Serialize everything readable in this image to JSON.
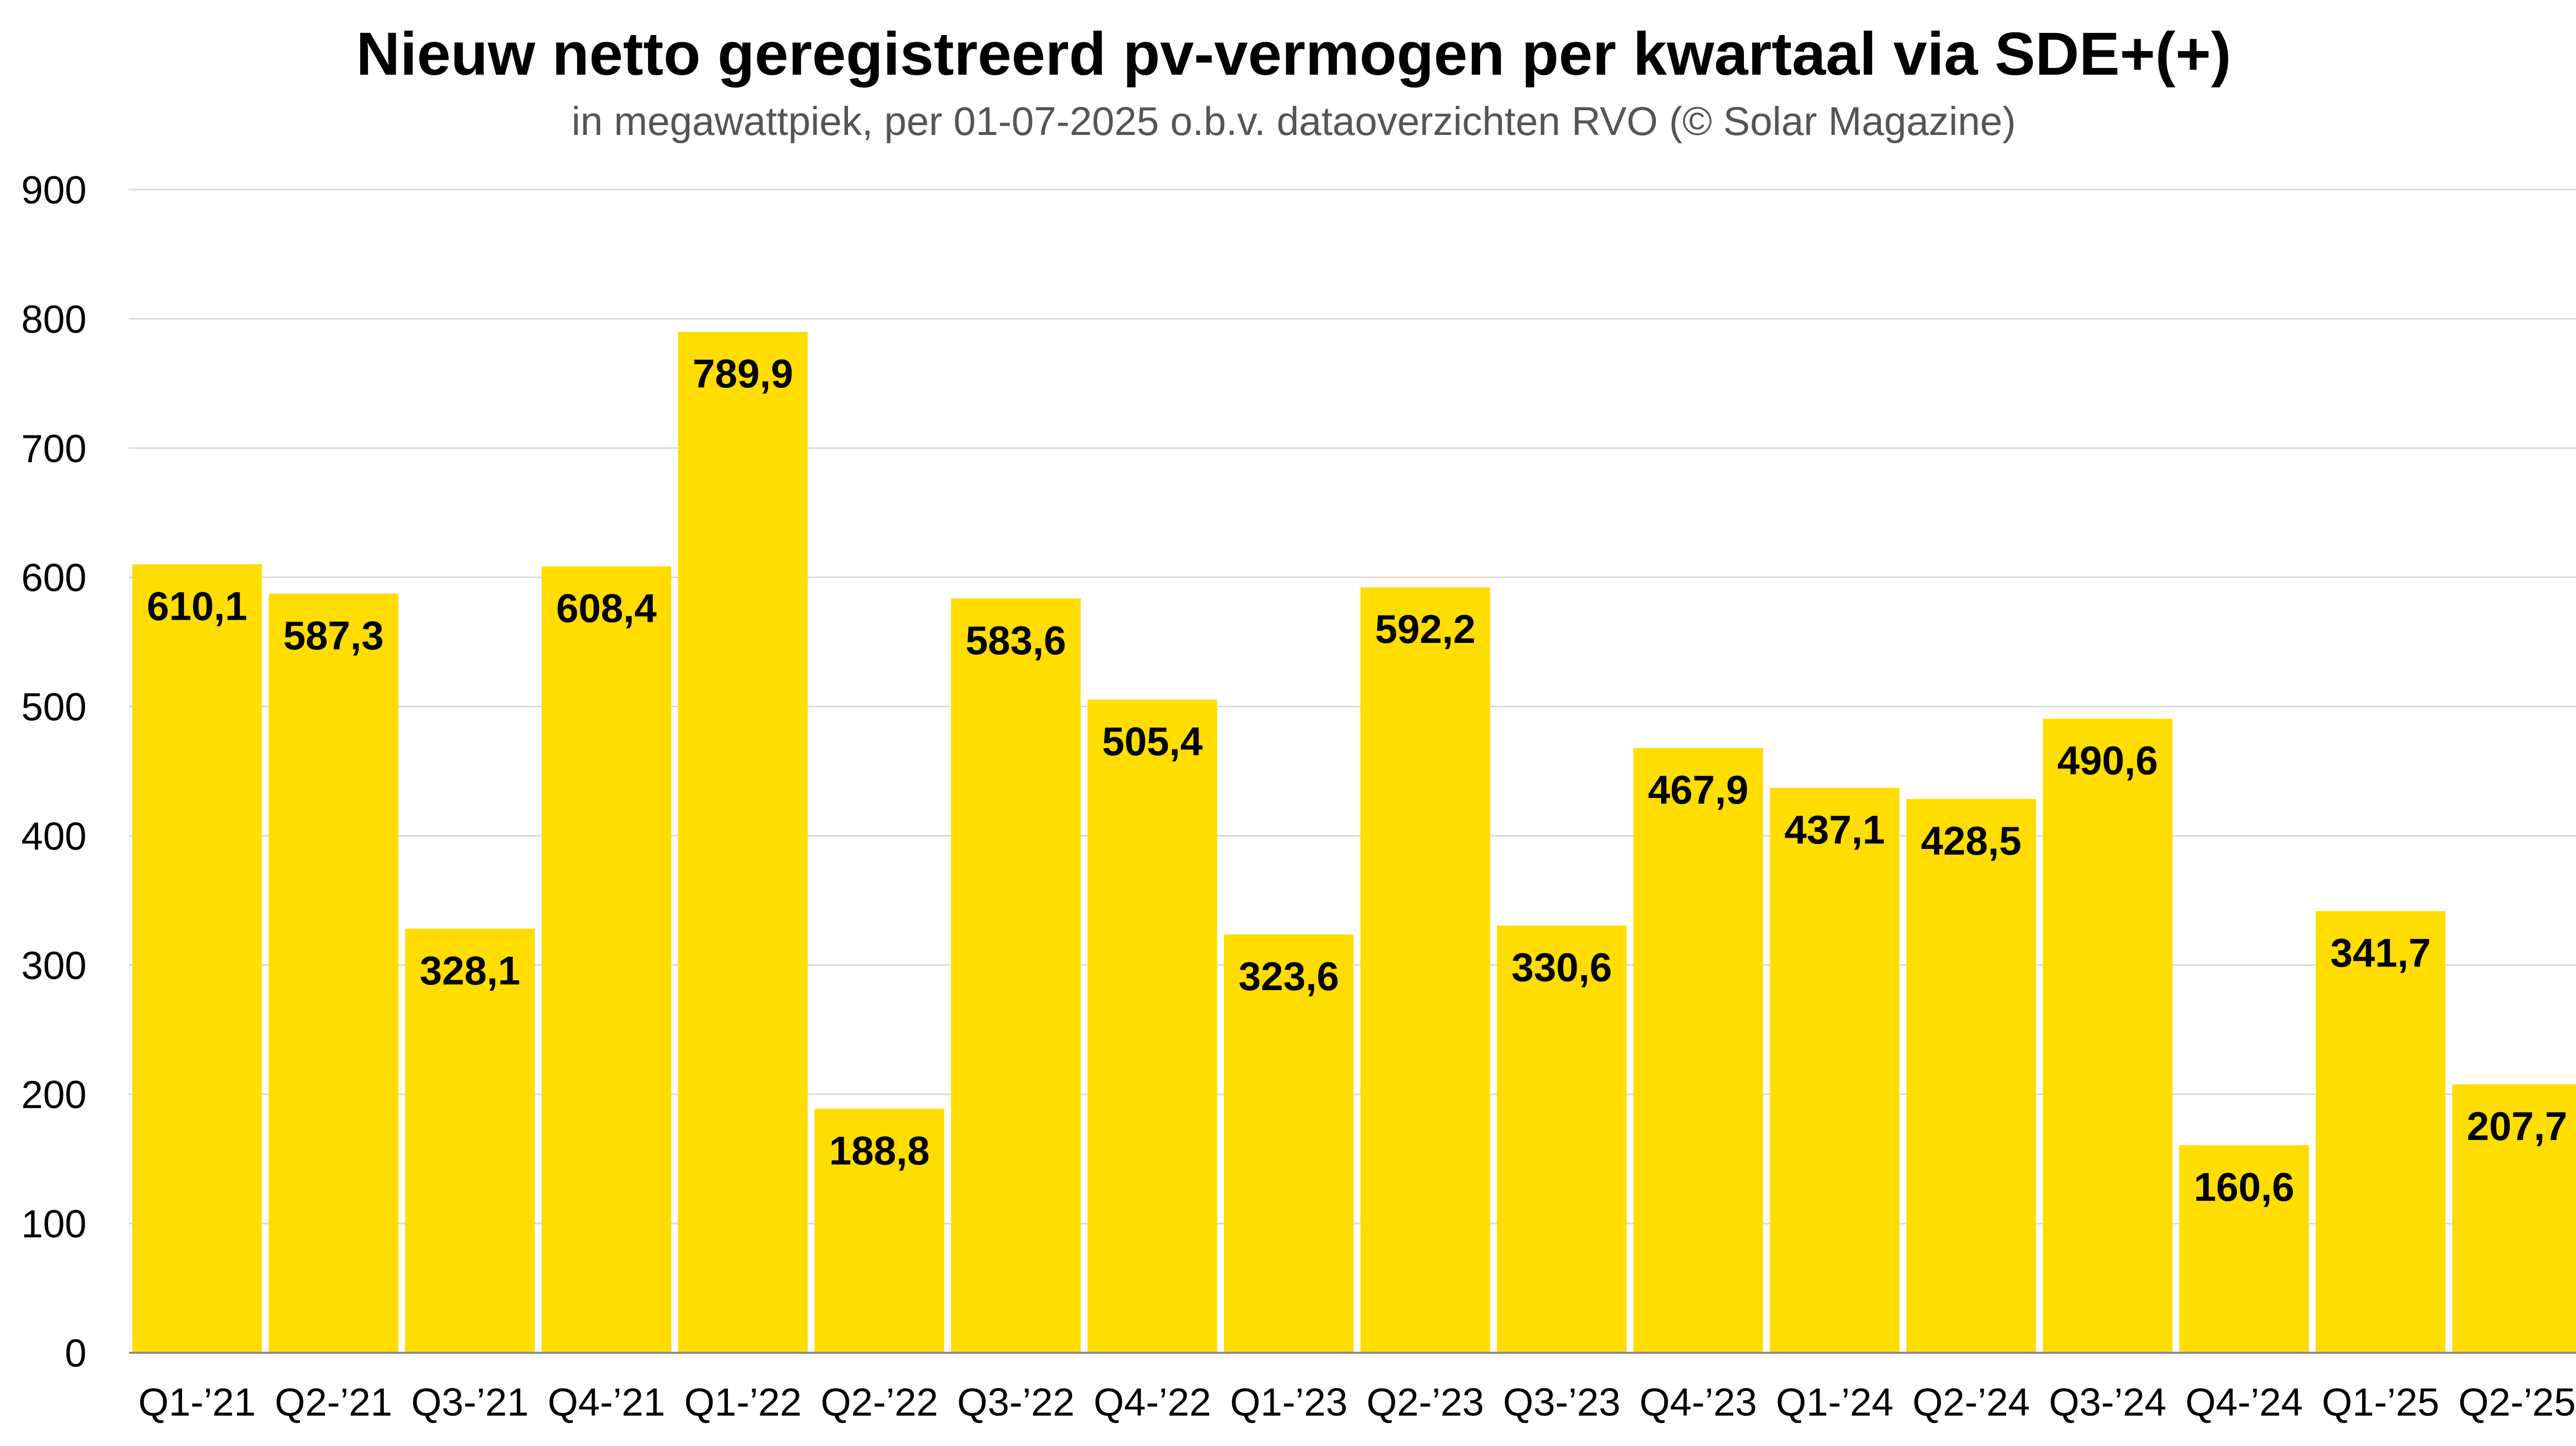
{
  "chart_data": {
    "type": "bar",
    "title": "Nieuw netto geregistreerd pv-vermogen per kwartaal via SDE+(+)",
    "subtitle": "in megawattpiek, per 01-07-2025 o.b.v. dataoverzichten RVO (© Solar Magazine)",
    "categories": [
      "Q1-’21",
      "Q2-’21",
      "Q3-’21",
      "Q4-’21",
      "Q1-’22",
      "Q2-’22",
      "Q3-’22",
      "Q4-’22",
      "Q1-’23",
      "Q2-’23",
      "Q3-’23",
      "Q4-’23",
      "Q1-’24",
      "Q2-’24",
      "Q3-’24",
      "Q4-’24",
      "Q1-’25",
      "Q2-’25"
    ],
    "values": [
      610.1,
      587.3,
      328.1,
      608.4,
      789.9,
      188.8,
      583.6,
      505.4,
      323.6,
      592.2,
      330.6,
      467.9,
      437.1,
      428.5,
      490.6,
      160.6,
      341.7,
      207.7
    ],
    "value_labels": [
      "610,1",
      "587,3",
      "328,1",
      "608,4",
      "789,9",
      "188,8",
      "583,6",
      "505,4",
      "323,6",
      "592,2",
      "330,6",
      "467,9",
      "437,1",
      "428,5",
      "490,6",
      "160,6",
      "341,7",
      "207,7"
    ],
    "yticks": [
      "0",
      "100",
      "200",
      "300",
      "400",
      "500",
      "600",
      "700",
      "800",
      "900"
    ],
    "ylim": [
      0,
      900
    ],
    "xlabel": "",
    "ylabel": "",
    "grid": true,
    "legend": "none",
    "colors": {
      "bar": "#FFDD00",
      "grid": "#D9D9D9",
      "axis": "#8C8C8C"
    }
  }
}
